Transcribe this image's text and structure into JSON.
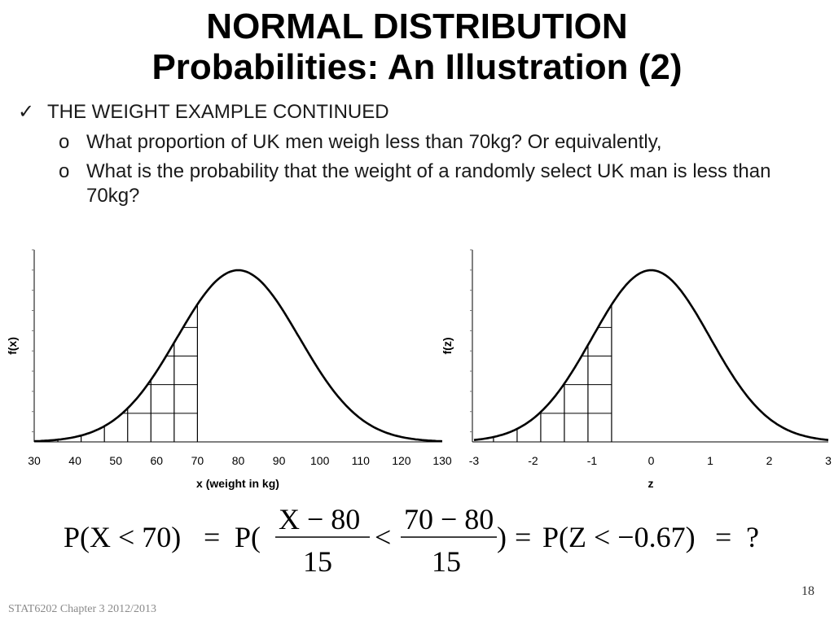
{
  "slide": {
    "title_line1": "NORMAL DISTRIBUTION",
    "title_line2": "Probabilities: An Illustration (2)",
    "bullet_main": "THE WEIGHT EXAMPLE CONTINUED",
    "sub_bullets": [
      "What proportion of UK men weigh less than 70kg? Or equivalently,",
      "What is the probability that the weight of a randomly select UK man is less than 70kg?"
    ],
    "check_icon": "checkmark-icon",
    "sub_marker": "o",
    "formula": {
      "lhs": "P(X < 70)",
      "eq1": "=",
      "p_open": "P(",
      "num1": "X − 80",
      "den1": "15",
      "lt": "<",
      "num2": "70 − 80",
      "den2": "15",
      "p_close": ")",
      "eq2": "=",
      "mid": "P(Z < −0.67)",
      "eq3": "=",
      "result": "?"
    },
    "footer": "STAT6202  Chapter 3 2012/2013",
    "page_number": "18"
  },
  "chart_data": [
    {
      "type": "area",
      "distribution": "normal",
      "mean": 80,
      "sd": 15,
      "shaded_below": 70,
      "xlim": [
        30,
        130
      ],
      "xticks": [
        30,
        40,
        50,
        60,
        70,
        80,
        90,
        100,
        110,
        120,
        130
      ],
      "xlabel": "x (weight in kg)",
      "ylabel": "f(x)",
      "grid": false
    },
    {
      "type": "area",
      "distribution": "normal",
      "mean": 0,
      "sd": 1,
      "shaded_below": -0.67,
      "xlim": [
        -3,
        3
      ],
      "xticks": [
        -3,
        -2,
        -1,
        0,
        1,
        2,
        3
      ],
      "xlabel": "z",
      "ylabel": "f(z)",
      "grid": false
    }
  ]
}
